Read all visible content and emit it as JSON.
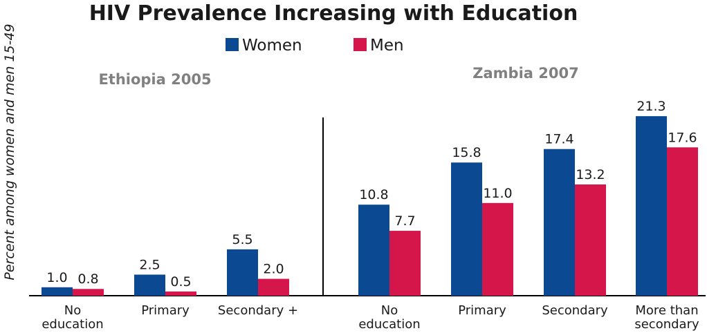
{
  "chart_data": {
    "type": "bar",
    "title": "HIV Prevalence Increasing with Education",
    "ylabel": "Percent among women and men 15-49",
    "ylim": [
      0,
      22.5
    ],
    "legend": {
      "placement": "top-center",
      "entries": [
        {
          "name": "Women",
          "color": "#0b4a92"
        },
        {
          "name": "Men",
          "color": "#d4164b"
        }
      ]
    },
    "panels": [
      {
        "title": "Ethiopia 2005",
        "categories": [
          [
            "No",
            "education"
          ],
          [
            "Primary"
          ],
          [
            "Secondary +"
          ]
        ],
        "series": [
          {
            "name": "Women",
            "values": [
              1.0,
              2.5,
              5.5
            ],
            "labels": [
              "1.0",
              "2.5",
              "5.5"
            ]
          },
          {
            "name": "Men",
            "values": [
              0.8,
              0.5,
              2.0
            ],
            "labels": [
              "0.8",
              "0.5",
              "2.0"
            ]
          }
        ]
      },
      {
        "title": "Zambia 2007",
        "categories": [
          [
            "No",
            "education"
          ],
          [
            "Primary"
          ],
          [
            "Secondary"
          ],
          [
            "More than",
            "secondary"
          ]
        ],
        "series": [
          {
            "name": "Women",
            "values": [
              10.8,
              15.8,
              17.4,
              21.3
            ],
            "labels": [
              "10.8",
              "15.8",
              "17.4",
              "21.3"
            ]
          },
          {
            "name": "Men",
            "values": [
              7.7,
              11.0,
              13.2,
              17.6
            ],
            "labels": [
              "7.7",
              "11.0",
              "13.2",
              "17.6"
            ]
          }
        ]
      }
    ],
    "grid": false,
    "colors": {
      "women": "#0b4a92",
      "men": "#d4164b",
      "axis": "#000000",
      "panel_title": "#808080"
    }
  }
}
